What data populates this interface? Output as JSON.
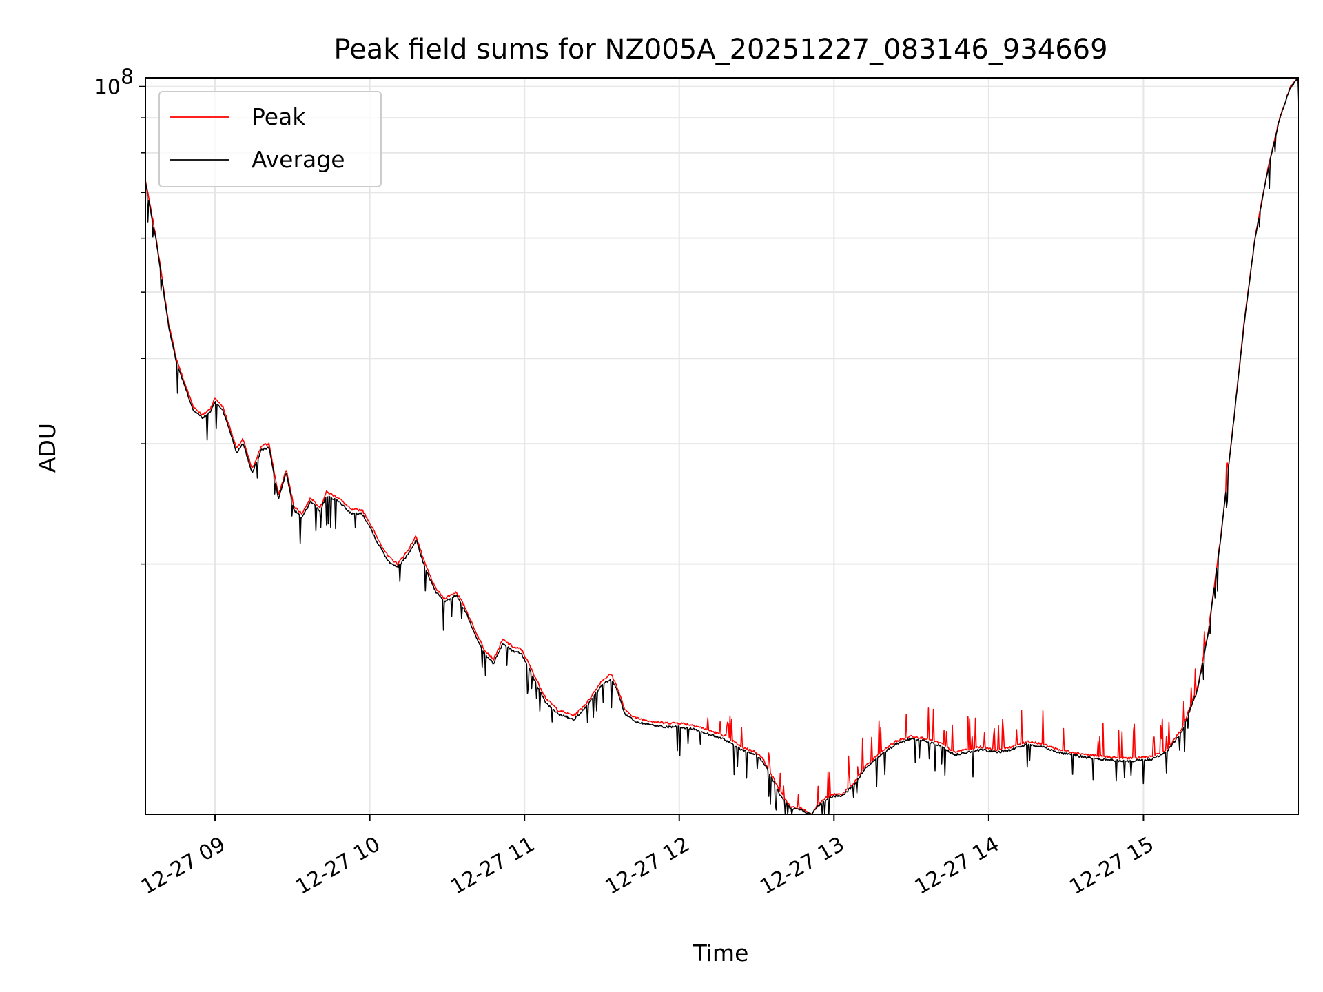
{
  "chart_data": {
    "type": "line",
    "title": "Peak field sums for NZ005A_20251227_083146_934669",
    "xlabel": "Time",
    "ylabel": "ADU",
    "yscale": "log",
    "ylim": [
      8600000,
      103000000
    ],
    "xlim_hours": [
      8.55,
      16.0
    ],
    "grid": true,
    "legend_position": "upper-left",
    "x_ticks": [
      {
        "hour": 9,
        "label": "12-27 09"
      },
      {
        "hour": 10,
        "label": "12-27 10"
      },
      {
        "hour": 11,
        "label": "12-27 11"
      },
      {
        "hour": 12,
        "label": "12-27 12"
      },
      {
        "hour": 13,
        "label": "12-27 13"
      },
      {
        "hour": 14,
        "label": "12-27 14"
      },
      {
        "hour": 15,
        "label": "12-27 15"
      }
    ],
    "y_major_ticks": [
      {
        "value": 100000000,
        "base": "10",
        "exp": "8"
      }
    ],
    "y_minor_ticks": [
      20000000,
      30000000,
      40000000,
      50000000,
      60000000,
      70000000,
      80000000,
      90000000
    ],
    "series": [
      {
        "name": "Peak",
        "color": "#ff0000",
        "x_hours": [
          8.55,
          8.58,
          8.62,
          8.66,
          8.7,
          8.75,
          8.8,
          8.86,
          8.92,
          8.97,
          9.0,
          9.05,
          9.1,
          9.14,
          9.18,
          9.24,
          9.3,
          9.35,
          9.41,
          9.46,
          9.51,
          9.56,
          9.62,
          9.68,
          9.72,
          9.8,
          9.88,
          9.95,
          10.0,
          10.05,
          10.12,
          10.18,
          10.25,
          10.3,
          10.35,
          10.42,
          10.48,
          10.56,
          10.62,
          10.68,
          10.74,
          10.8,
          10.86,
          10.93,
          10.98,
          11.02,
          11.08,
          11.14,
          11.22,
          11.32,
          11.4,
          11.5,
          11.56,
          11.6,
          11.65,
          11.72,
          11.8,
          11.9,
          12.0,
          12.1,
          12.2,
          12.3,
          12.4,
          12.5,
          12.55,
          12.6,
          12.65,
          12.72,
          12.78,
          12.82,
          12.85,
          12.9,
          12.95,
          13.0,
          13.05,
          13.12,
          13.2,
          13.3,
          13.4,
          13.5,
          13.6,
          13.7,
          13.78,
          13.85,
          13.95,
          14.05,
          14.15,
          14.25,
          14.35,
          14.45,
          14.55,
          14.65,
          14.75,
          14.85,
          14.95,
          15.05,
          15.15,
          15.25,
          15.35,
          15.42,
          15.5,
          15.58,
          15.65,
          15.72,
          15.8,
          15.88,
          15.95,
          16.0
        ],
        "values": [
          73000000,
          67000000,
          60000000,
          52000000,
          45000000,
          40000000,
          37000000,
          34000000,
          33000000,
          33800000,
          35000000,
          34000000,
          31500000,
          29500000,
          30500000,
          27500000,
          29800000,
          30000000,
          25200000,
          27500000,
          24300000,
          23700000,
          25000000,
          24200000,
          25500000,
          25000000,
          24000000,
          24000000,
          23000000,
          21800000,
          20500000,
          20000000,
          21000000,
          22000000,
          20200000,
          18500000,
          17800000,
          18200000,
          17200000,
          16000000,
          15000000,
          14500000,
          15500000,
          15100000,
          15000000,
          14400000,
          13500000,
          12700000,
          12200000,
          12000000,
          12500000,
          13500000,
          13800000,
          13200000,
          12200000,
          11900000,
          11800000,
          11700000,
          11700000,
          11600000,
          11400000,
          11200000,
          10800000,
          10600000,
          10300000,
          9800000,
          9300000,
          8800000,
          8800000,
          8700000,
          8600000,
          8900000,
          9100000,
          9200000,
          9200000,
          9500000,
          10100000,
          10600000,
          11000000,
          11200000,
          11100000,
          10900000,
          10600000,
          10700000,
          10800000,
          10700000,
          10800000,
          11000000,
          10900000,
          10700000,
          10600000,
          10500000,
          10450000,
          10400000,
          10400000,
          10450000,
          10700000,
          11500000,
          13200000,
          16000000,
          22000000,
          32000000,
          45000000,
          60000000,
          75000000,
          90000000,
          100000000,
          103000000
        ]
      },
      {
        "name": "Average",
        "color": "#000000",
        "x_hours": [
          8.55,
          8.58,
          8.62,
          8.66,
          8.7,
          8.75,
          8.8,
          8.86,
          8.92,
          8.97,
          9.0,
          9.05,
          9.1,
          9.14,
          9.18,
          9.24,
          9.3,
          9.35,
          9.41,
          9.46,
          9.51,
          9.56,
          9.62,
          9.68,
          9.72,
          9.8,
          9.88,
          9.95,
          10.0,
          10.05,
          10.12,
          10.18,
          10.25,
          10.3,
          10.35,
          10.42,
          10.48,
          10.56,
          10.62,
          10.68,
          10.74,
          10.8,
          10.86,
          10.93,
          10.98,
          11.02,
          11.08,
          11.14,
          11.22,
          11.32,
          11.4,
          11.5,
          11.56,
          11.6,
          11.65,
          11.72,
          11.8,
          11.9,
          12.0,
          12.1,
          12.2,
          12.3,
          12.4,
          12.5,
          12.55,
          12.6,
          12.65,
          12.72,
          12.78,
          12.82,
          12.85,
          12.9,
          12.95,
          13.0,
          13.05,
          13.12,
          13.2,
          13.3,
          13.4,
          13.5,
          13.6,
          13.7,
          13.78,
          13.85,
          13.95,
          14.05,
          14.15,
          14.25,
          14.35,
          14.45,
          14.55,
          14.65,
          14.75,
          14.85,
          14.95,
          15.05,
          15.15,
          15.25,
          15.35,
          15.42,
          15.5,
          15.58,
          15.65,
          15.72,
          15.8,
          15.88,
          15.95,
          16.0
        ],
        "values": [
          72500000,
          66500000,
          59500000,
          51500000,
          44600000,
          39600000,
          36600000,
          33600000,
          32700000,
          33400000,
          34600000,
          33600000,
          31100000,
          29100000,
          30100000,
          27200000,
          29400000,
          29600000,
          24900000,
          27200000,
          24000000,
          23400000,
          24700000,
          23900000,
          25200000,
          24700000,
          23700000,
          23700000,
          22700000,
          21500000,
          20200000,
          19800000,
          20700000,
          21700000,
          19950000,
          18300000,
          17600000,
          18000000,
          17000000,
          15800000,
          14800000,
          14300000,
          15300000,
          14900000,
          14800000,
          14200000,
          13300000,
          12500000,
          12050000,
          11850000,
          12350000,
          13300000,
          13600000,
          13050000,
          12050000,
          11750000,
          11650000,
          11550000,
          11550000,
          11450000,
          11250000,
          11050000,
          10700000,
          10500000,
          10200000,
          9700000,
          9200000,
          8750000,
          8750000,
          8650000,
          8600000,
          8850000,
          9050000,
          9150000,
          9150000,
          9450000,
          10000000,
          10500000,
          10900000,
          11100000,
          11000000,
          10800000,
          10500000,
          10600000,
          10700000,
          10600000,
          10700000,
          10900000,
          10800000,
          10600000,
          10500000,
          10400000,
          10350000,
          10300000,
          10300000,
          10350000,
          10600000,
          11400000,
          13100000,
          15900000,
          21900000,
          31900000,
          44800000,
          59800000,
          74800000,
          89800000,
          99800000,
          102800000
        ]
      }
    ]
  }
}
